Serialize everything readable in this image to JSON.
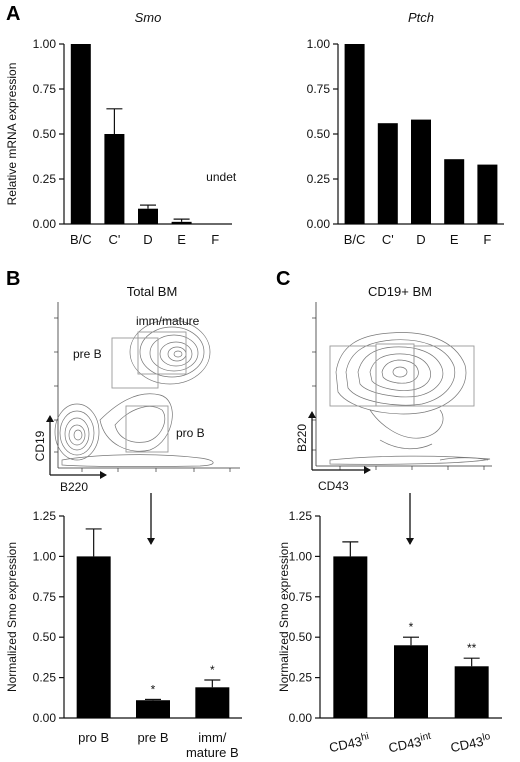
{
  "panels": {
    "A": "A",
    "B": "B",
    "C": "C"
  },
  "flow": {
    "B": {
      "title": "Total BM",
      "xlabel": "B220",
      "ylabel": "CD19",
      "gates": [
        "imm/mature",
        "pre B",
        "pro B"
      ]
    },
    "C": {
      "title": "CD19+ BM",
      "xlabel": "CD43",
      "ylabel": "B220"
    }
  },
  "chart_data": [
    {
      "id": "smo",
      "type": "bar",
      "title": "Smo",
      "ylabel": "Relative mRNA expression",
      "categories": [
        "B/C",
        "C'",
        "D",
        "E",
        "F"
      ],
      "values": [
        1.0,
        0.5,
        0.085,
        0.012,
        0
      ],
      "errors": [
        0,
        0.14,
        0.02,
        0.015,
        0
      ],
      "ylim": [
        0,
        1.0
      ],
      "yticks": [
        "0.00",
        "0.25",
        "0.50",
        "0.75",
        "1.00"
      ],
      "annotations": [
        {
          "category": "F",
          "text": "undet"
        }
      ],
      "color": "#000000"
    },
    {
      "id": "ptch",
      "type": "bar",
      "title": "Ptch",
      "categories": [
        "B/C",
        "C'",
        "D",
        "E",
        "F"
      ],
      "values": [
        1.0,
        0.56,
        0.58,
        0.36,
        0.33
      ],
      "errors": [
        0,
        0,
        0,
        0,
        0
      ],
      "ylim": [
        0,
        1.0
      ],
      "yticks": [
        "0.00",
        "0.25",
        "0.50",
        "0.75",
        "1.00"
      ],
      "color": "#000000"
    },
    {
      "id": "totalbm",
      "type": "bar",
      "ylabel": "Normalized Smo expression",
      "categories": [
        "pro B",
        "pre B",
        "imm/ mature B"
      ],
      "values": [
        1.0,
        0.11,
        0.19
      ],
      "errors": [
        0.17,
        0.005,
        0.045
      ],
      "significance": [
        "",
        "*",
        "*"
      ],
      "ylim": [
        0,
        1.25
      ],
      "yticks": [
        "0.00",
        "0.25",
        "0.50",
        "0.75",
        "1.00",
        "1.25"
      ],
      "color": "#000000"
    },
    {
      "id": "cd19bm",
      "type": "bar",
      "ylabel": "Normalized Smo expression",
      "categories": [
        "CD43hi",
        "CD43int",
        "CD43lo"
      ],
      "values": [
        1.0,
        0.45,
        0.32
      ],
      "errors": [
        0.09,
        0.05,
        0.05
      ],
      "significance": [
        "",
        "*",
        "**"
      ],
      "ylim": [
        0,
        1.25
      ],
      "yticks": [
        "0.00",
        "0.25",
        "0.50",
        "0.75",
        "1.00",
        "1.25"
      ],
      "color": "#000000"
    }
  ]
}
